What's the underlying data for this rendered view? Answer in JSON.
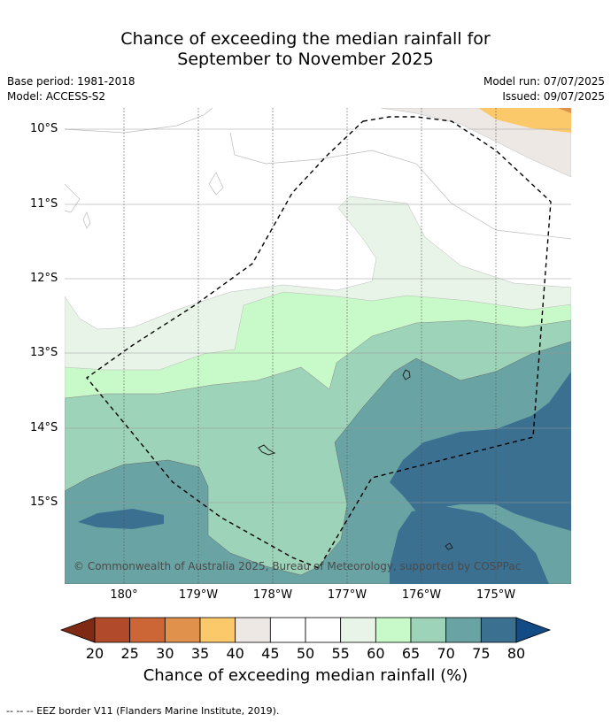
{
  "title": {
    "line1": "Chance of exceeding the median rainfall for",
    "line2": "September to November 2025"
  },
  "meta": {
    "base_period": "Base period: 1981-2018",
    "model": "Model: ACCESS-S2",
    "model_run": "Model run: 07/07/2025",
    "issued": "Issued: 09/07/2025"
  },
  "map": {
    "lat_labels": [
      "10°S",
      "11°S",
      "12°S",
      "13°S",
      "14°S",
      "15°S"
    ],
    "lon_labels": [
      "180°",
      "179°W",
      "178°W",
      "177°W",
      "176°W",
      "175°W"
    ],
    "copyright": "© Commonwealth of Australia 2025, Bureau of Meteorology, supported by COSPPac",
    "eez_style": "dashed black",
    "grid": true
  },
  "colorbar": {
    "ticks": [
      "20",
      "25",
      "30",
      "35",
      "40",
      "45",
      "50",
      "55",
      "60",
      "65",
      "70",
      "75",
      "80"
    ],
    "colors": [
      "#7f2a14",
      "#b04a2a",
      "#cc6636",
      "#e0914c",
      "#fcc96a",
      "#ede8e4",
      "#ffffff",
      "#ffffff",
      "#e8f4e8",
      "#c8f9c8",
      "#9dd3b8",
      "#6aa3a3",
      "#3b7091",
      "#134b85"
    ],
    "label": "Chance of exceeding median rainfall (%)"
  },
  "footer": "--  --  -- EEZ border V11 (Flanders Marine Institute, 2019)."
}
